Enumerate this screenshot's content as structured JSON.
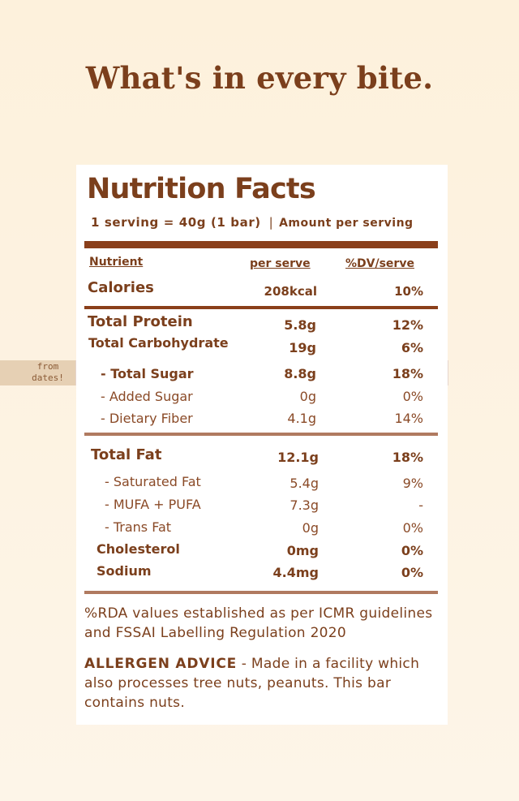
{
  "headline": "What's in every bite.",
  "panel": {
    "title": "Nutrition Facts",
    "serving": "1 serving = 40g (1 bar)",
    "separator": "|",
    "amount_label": "Amount per serving"
  },
  "columns": {
    "nutrient": "Nutrient",
    "per_serve": "per serve",
    "dv": "%DV/serve"
  },
  "rows": {
    "calories": {
      "name": "Calories",
      "amount": "208kcal",
      "dv": "10%"
    },
    "protein": {
      "name": "Total Protein",
      "amount": "5.8g",
      "dv": "12%"
    },
    "carbs": {
      "name": "Total Carbohydrate",
      "amount": "19g",
      "dv": "6%"
    },
    "sugar": {
      "name": "- Total Sugar",
      "amount": "8.8g",
      "dv": "18%"
    },
    "added_sugar": {
      "name": "- Added Sugar",
      "amount": "0g",
      "dv": "0%"
    },
    "fiber": {
      "name": "- Dietary Fiber",
      "amount": "4.1g",
      "dv": "14%"
    },
    "fat": {
      "name": "Total Fat",
      "amount": "12.1g",
      "dv": "18%"
    },
    "sat_fat": {
      "name": "- Saturated Fat",
      "amount": "5.4g",
      "dv": "9%"
    },
    "mufa_pufa": {
      "name": "- MUFA + PUFA",
      "amount": "7.3g",
      "dv": "-"
    },
    "trans_fat": {
      "name": "- Trans Fat",
      "amount": "0g",
      "dv": "0%"
    },
    "cholesterol": {
      "name": "Cholesterol",
      "amount": "0mg",
      "dv": "0%"
    },
    "sodium": {
      "name": "Sodium",
      "amount": "4.4mg",
      "dv": "0%"
    }
  },
  "side_note": {
    "line1": "from",
    "line2": "dates!"
  },
  "footer": {
    "rda_note": "%RDA values established as per ICMR guidelines and FSSAI Labelling Regulation 2020",
    "allergen_label": "ALLERGEN ADVICE",
    "allergen_text": " - Made in a facility which also processes tree nuts, peanuts. This bar contains nuts."
  },
  "colors": {
    "brand_brown": "#7b3f1c",
    "highlight": "#e6d5cd",
    "side_note_bg": "#e6d0b4",
    "background": "#fdf1dc"
  }
}
